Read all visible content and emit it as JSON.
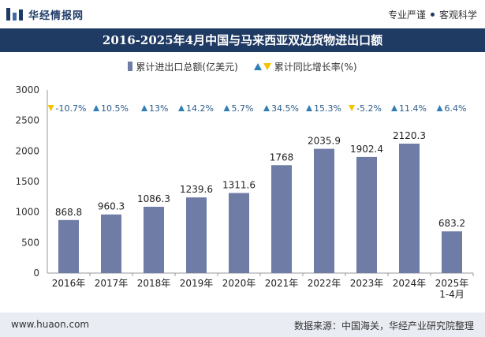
{
  "header": {
    "brand": "华经情报网",
    "slogan_left": "专业严谨",
    "slogan_right": "客观科学"
  },
  "title": "2016-2025年4月中国与马来西亚双边货物进出口额",
  "legend": {
    "bar_label": "累计进出口总额(亿美元)",
    "line_label": "累计同比增长率(%)"
  },
  "footer": {
    "website": "www.huaon.com",
    "source": "数据来源：中国海关，华经产业研究院整理"
  },
  "colors": {
    "bar": "#6e7ca6",
    "up": "#2f7fb6",
    "down": "#f5c200",
    "header_bg": "#1f3a63"
  },
  "chart_data": {
    "type": "bar",
    "categories": [
      "2016年",
      "2017年",
      "2018年",
      "2019年",
      "2020年",
      "2021年",
      "2022年",
      "2023年",
      "2024年",
      "2025年\n1-4月"
    ],
    "series": [
      {
        "name": "累计进出口总额(亿美元)",
        "values": [
          868.8,
          960.3,
          1086.3,
          1239.6,
          1311.6,
          1768,
          2035.9,
          1902.4,
          2120.3,
          683.2
        ]
      }
    ],
    "value_labels": [
      "868.8",
      "960.3",
      "1086.3",
      "1239.6",
      "1311.6",
      "1768",
      "2035.9",
      "1902.4",
      "2120.3",
      "683.2"
    ],
    "growth": {
      "name": "累计同比增长率(%)",
      "values": [
        -10.7,
        10.5,
        13,
        14.2,
        5.7,
        34.5,
        15.3,
        -5.2,
        11.4,
        6.4
      ],
      "labels": [
        "-10.7%",
        "10.5%",
        "13%",
        "14.2%",
        "5.7%",
        "34.5%",
        "15.3%",
        "-5.2%",
        "11.4%",
        "6.4%"
      ]
    },
    "ylim": [
      0,
      3000
    ],
    "yticks": [
      0,
      500,
      1000,
      1500,
      2000,
      2500,
      3000
    ],
    "xlabel": "",
    "ylabel": "",
    "grid": false,
    "legend_position": "top"
  }
}
